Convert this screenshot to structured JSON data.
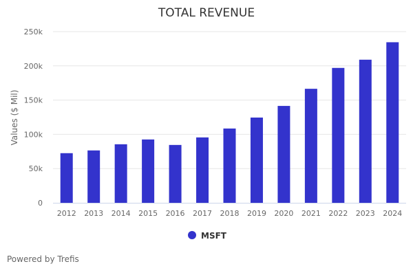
{
  "chart_data": {
    "type": "bar",
    "title": "TOTAL REVENUE",
    "xlabel": "",
    "ylabel": "Values ($ Mil)",
    "categories": [
      "2012",
      "2013",
      "2014",
      "2015",
      "2016",
      "2017",
      "2018",
      "2019",
      "2020",
      "2021",
      "2022",
      "2023",
      "2024"
    ],
    "series": [
      {
        "name": "MSFT",
        "color": "#3333cc",
        "values": [
          72500,
          76500,
          85500,
          92500,
          84500,
          95500,
          108500,
          124500,
          141500,
          166500,
          197000,
          209000,
          234500
        ]
      }
    ],
    "ylim": [
      0,
      250000
    ],
    "yticks": [
      0,
      50000,
      100000,
      150000,
      200000,
      250000
    ],
    "ytick_labels": [
      "0",
      "50k",
      "100k",
      "150k",
      "200k",
      "250k"
    ],
    "grid": true,
    "legend_position": "bottom-center"
  },
  "footer": {
    "credit": "Powered by Trefis"
  }
}
